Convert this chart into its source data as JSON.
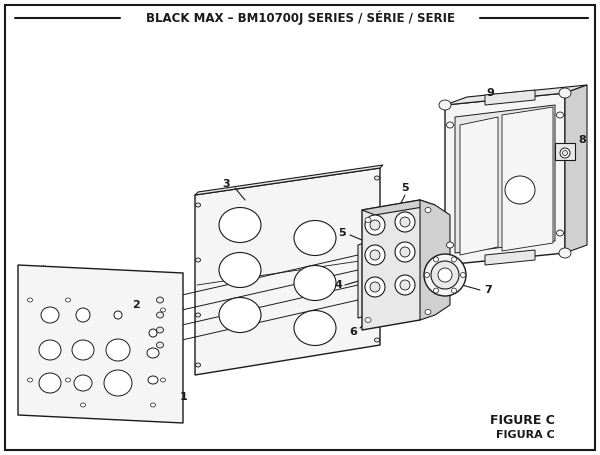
{
  "title": "BLACK MAX – BM10700J SERIES / SÉRIE / SERIE",
  "figure_label": "FIGURE C",
  "figura_label": "FIGURA C",
  "bg_color": "#ffffff",
  "border_color": "#1a1a1a",
  "line_color": "#1a1a1a",
  "fill_light": "#f5f5f5",
  "fill_med": "#e8e8e8",
  "fill_dark": "#d0d0d0",
  "title_fontsize": 8.5,
  "label_fontsize": 7.5,
  "figure_fontsize": 9
}
